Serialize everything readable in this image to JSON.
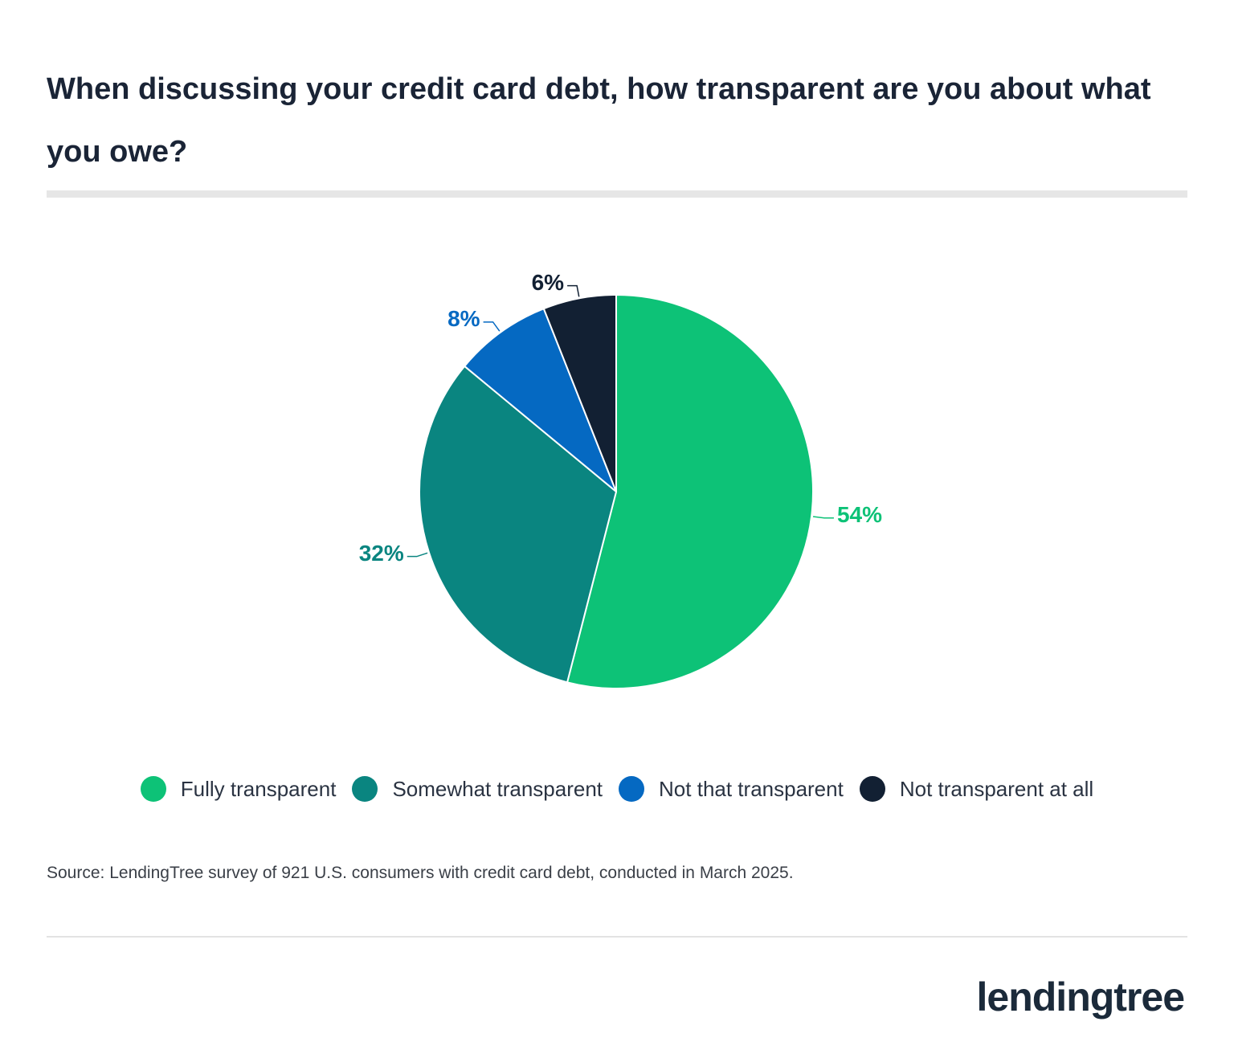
{
  "chart_data": {
    "type": "pie",
    "title": "When discussing your credit card debt, how transparent are you about what you owe?",
    "categories": [
      "Fully transparent",
      "Somewhat transparent",
      "Not that transparent",
      "Not transparent at all"
    ],
    "values": [
      54,
      32,
      8,
      6
    ],
    "value_labels": [
      "54%",
      "32%",
      "8%",
      "6%"
    ],
    "colors": [
      "#0dc277",
      "#0a8580",
      "#0569c2",
      "#122033"
    ],
    "source": "Source: LendingTree survey of 921 U.S. consumers with credit card debt, conducted in March 2025."
  },
  "brand": "lendingtree"
}
